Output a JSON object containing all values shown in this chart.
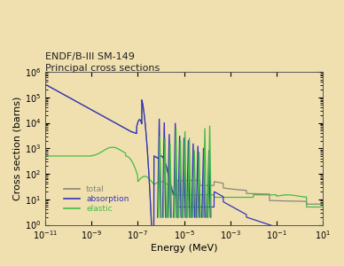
{
  "title_line1": "ENDF/B-III SM-149",
  "title_line2": "Principal cross sections",
  "xlabel": "Energy (MeV)",
  "ylabel": "Cross section (barns)",
  "background_color": "#f0e0b0",
  "total_color": "#888877",
  "absorption_color": "#3333bb",
  "elastic_color": "#44bb44",
  "legend_labels": [
    "total",
    "absorption",
    "elastic"
  ],
  "figsize": [
    3.88,
    3.0
  ],
  "dpi": 100
}
